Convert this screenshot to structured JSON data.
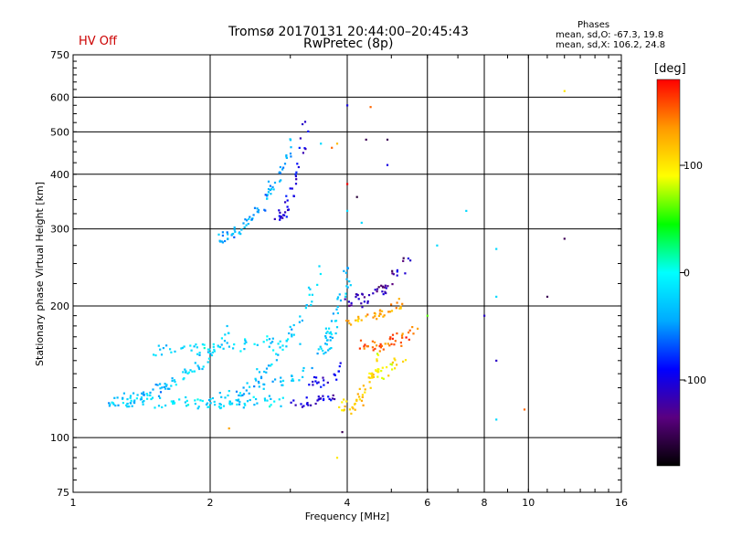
{
  "header": {
    "title_line1": "Tromsø 20170131 20:44:00–20:45:43",
    "title_line2": "RwPretec (8p)",
    "status": "HV Off"
  },
  "phases": {
    "title": "Phases",
    "o_stats": "mean, sd,O: -67.3, 19.8",
    "x_stats": "mean, sd,X: 106.2, 24.8"
  },
  "colorbar": {
    "label": "[deg]",
    "ticks": [
      {
        "value": 100,
        "label": "100"
      },
      {
        "value": 0,
        "label": "0"
      },
      {
        "value": -100,
        "label": "-100"
      }
    ],
    "range": [
      -180,
      180
    ],
    "stops": [
      "#000000",
      "#5a0080",
      "#0000ff",
      "#00aaff",
      "#00ffff",
      "#00ff00",
      "#ffff00",
      "#ff9900",
      "#ff0000"
    ]
  },
  "chart_data": {
    "type": "scatter",
    "xlabel": "Frequency [MHz]",
    "ylabel": "Stationary phase Virtual Height [km]",
    "x_scale": "log",
    "y_scale": "log",
    "xlim": [
      1,
      16
    ],
    "ylim": [
      75,
      750
    ],
    "x_ticks": [
      {
        "value": 1,
        "label": "1"
      },
      {
        "value": 2,
        "label": "2"
      },
      {
        "value": 4,
        "label": "4"
      },
      {
        "value": 6,
        "label": "6"
      },
      {
        "value": 8,
        "label": "8"
      },
      {
        "value": 10,
        "label": "10"
      },
      {
        "value": 16,
        "label": "16"
      }
    ],
    "y_ticks": [
      {
        "value": 75,
        "label": "75"
      },
      {
        "value": 100,
        "label": "100"
      },
      {
        "value": 200,
        "label": "200"
      },
      {
        "value": 300,
        "label": "300"
      },
      {
        "value": 400,
        "label": "400"
      },
      {
        "value": 500,
        "label": "500"
      },
      {
        "value": 600,
        "label": "600"
      },
      {
        "value": 750,
        "label": "750"
      }
    ],
    "grid": true,
    "color_by": "phase [deg]",
    "traces": [
      {
        "f_start": 1.3,
        "f_end": 2.9,
        "h_start": 120,
        "h_end": 121,
        "phase": -20,
        "count": 50
      },
      {
        "f_start": 2.5,
        "f_end": 3.3,
        "h_start": 131,
        "h_end": 143,
        "phase": -40,
        "count": 18
      },
      {
        "f_start": 3.1,
        "f_end": 3.7,
        "h_start": 121,
        "h_end": 125,
        "phase": -100,
        "count": 18
      },
      {
        "f_start": 3.3,
        "f_end": 3.9,
        "h_start": 133,
        "h_end": 145,
        "phase": -100,
        "count": 16
      },
      {
        "f_start": 1.5,
        "f_end": 3.1,
        "h_start": 158,
        "h_end": 168,
        "phase": -20,
        "count": 40
      },
      {
        "f_start": 2.1,
        "f_end": 3.0,
        "h_start": 288,
        "h_end": 470,
        "phase": -40,
        "count": 45
      },
      {
        "f_start": 2.8,
        "f_end": 3.25,
        "h_start": 320,
        "h_end": 520,
        "phase": -100,
        "count": 26
      },
      {
        "f_start": 3.5,
        "f_end": 4.0,
        "h_start": 160,
        "h_end": 245,
        "phase": -30,
        "count": 34
      },
      {
        "f_start": 3.9,
        "f_end": 4.7,
        "h_start": 118,
        "h_end": 150,
        "phase": 110,
        "count": 28
      },
      {
        "f_start": 4.5,
        "f_end": 5.2,
        "h_start": 138,
        "h_end": 150,
        "phase": 100,
        "count": 20
      },
      {
        "f_start": 4.3,
        "f_end": 5.6,
        "h_start": 162,
        "h_end": 175,
        "phase": 150,
        "count": 28
      },
      {
        "f_start": 4.1,
        "f_end": 5.3,
        "h_start": 185,
        "h_end": 205,
        "phase": 130,
        "count": 24
      },
      {
        "f_start": 4.0,
        "f_end": 5.4,
        "h_start": 205,
        "h_end": 250,
        "phase": -120,
        "count": 30
      },
      {
        "f_start": 1.2,
        "f_end": 2.2,
        "h_start": 120,
        "h_end": 175,
        "phase": -30,
        "count": 60
      },
      {
        "f_start": 2.0,
        "f_end": 3.5,
        "h_start": 120,
        "h_end": 240,
        "phase": -30,
        "count": 45
      }
    ],
    "isolated_points": [
      {
        "f": 12.0,
        "h": 620,
        "phase": 100
      },
      {
        "f": 12.0,
        "h": 285,
        "phase": -150
      },
      {
        "f": 11.0,
        "h": 210,
        "phase": -150
      },
      {
        "f": 9.8,
        "h": 116,
        "phase": 150
      },
      {
        "f": 8.5,
        "h": 270,
        "phase": -20
      },
      {
        "f": 8.5,
        "h": 210,
        "phase": -20
      },
      {
        "f": 8.0,
        "h": 190,
        "phase": -110
      },
      {
        "f": 8.5,
        "h": 150,
        "phase": -110
      },
      {
        "f": 8.5,
        "h": 110,
        "phase": -20
      },
      {
        "f": 6.3,
        "h": 275,
        "phase": -20
      },
      {
        "f": 4.9,
        "h": 480,
        "phase": -150
      },
      {
        "f": 4.9,
        "h": 420,
        "phase": -100
      },
      {
        "f": 4.4,
        "h": 480,
        "phase": -150
      },
      {
        "f": 4.5,
        "h": 570,
        "phase": 150
      },
      {
        "f": 4.0,
        "h": 575,
        "phase": -100
      },
      {
        "f": 4.0,
        "h": 380,
        "phase": 180
      },
      {
        "f": 4.2,
        "h": 355,
        "phase": -160
      },
      {
        "f": 4.0,
        "h": 330,
        "phase": -20
      },
      {
        "f": 4.3,
        "h": 310,
        "phase": -20
      },
      {
        "f": 3.8,
        "h": 470,
        "phase": 120
      },
      {
        "f": 3.7,
        "h": 460,
        "phase": 150
      },
      {
        "f": 3.5,
        "h": 470,
        "phase": -20
      },
      {
        "f": 3.8,
        "h": 90,
        "phase": 100
      },
      {
        "f": 3.9,
        "h": 103,
        "phase": -150
      },
      {
        "f": 2.2,
        "h": 105,
        "phase": 130
      },
      {
        "f": 7.3,
        "h": 330,
        "phase": -20
      },
      {
        "f": 6.0,
        "h": 190,
        "phase": 60
      }
    ]
  }
}
